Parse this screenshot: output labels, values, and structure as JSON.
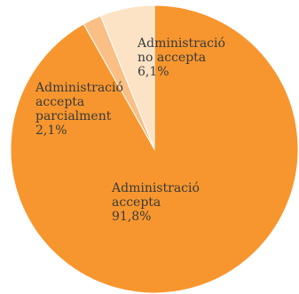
{
  "chart_data": {
    "type": "pie",
    "title": "",
    "slices": [
      {
        "label_lines": [
          "Administració",
          "accepta",
          "91,8%"
        ],
        "value": 91.8,
        "color": "#F7962E"
      },
      {
        "label_lines": [
          "Administració",
          "accepta",
          "parcialment",
          "2,1%"
        ],
        "value": 2.1,
        "color": "#F9BF85"
      },
      {
        "label_lines": [
          "Administració",
          "no accepta",
          "6,1%"
        ],
        "value": 6.1,
        "color": "#FDE3C6"
      }
    ],
    "legend": "none"
  }
}
